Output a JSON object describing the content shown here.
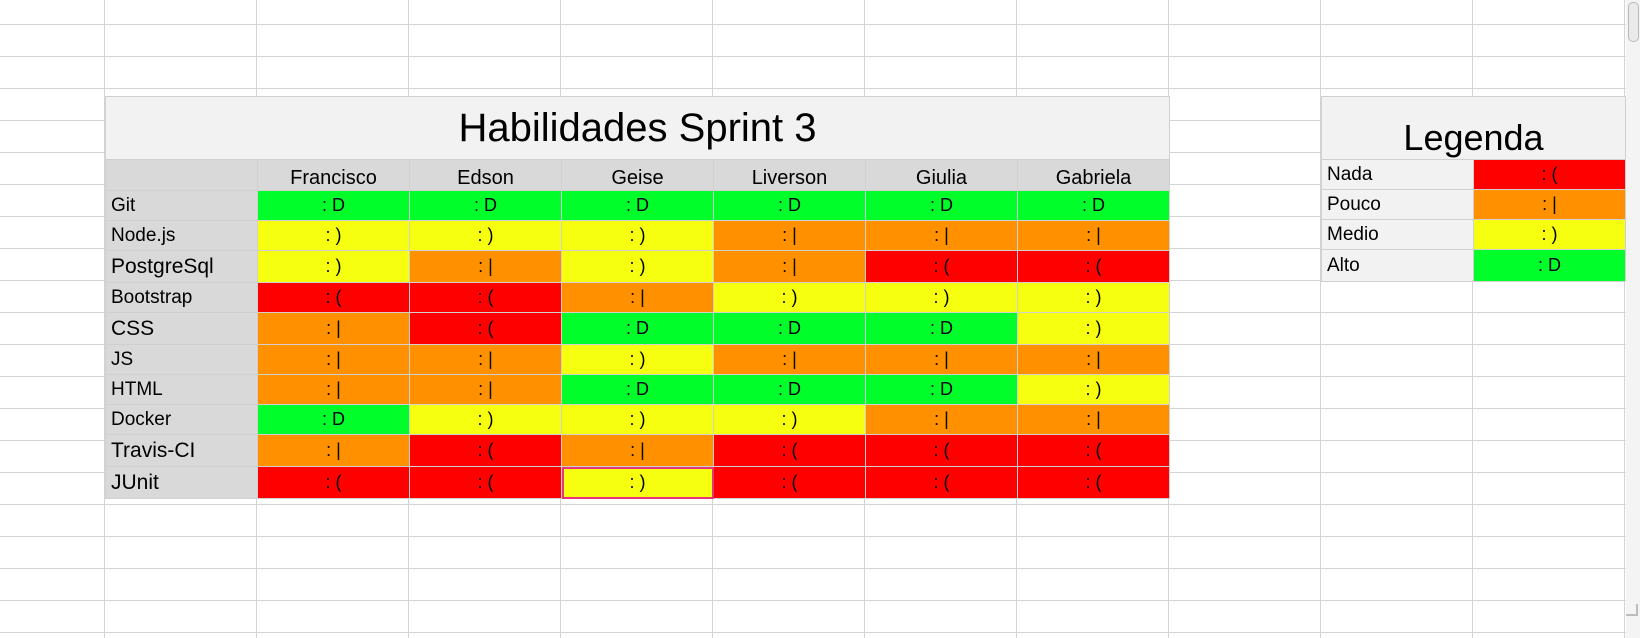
{
  "skills_table": {
    "title": "Habilidades Sprint 3",
    "people": [
      "Francisco",
      "Edson",
      "Geise",
      "Liverson",
      "Giulia",
      "Gabriela"
    ],
    "rows": [
      {
        "skill": "Git",
        "levels": [
          "alto",
          "alto",
          "alto",
          "alto",
          "alto",
          "alto"
        ]
      },
      {
        "skill": "Node.js",
        "levels": [
          "medio",
          "medio",
          "medio",
          "pouco",
          "pouco",
          "pouco"
        ]
      },
      {
        "skill": "PostgreSql",
        "levels": [
          "medio",
          "pouco",
          "medio",
          "pouco",
          "nada",
          "nada"
        ]
      },
      {
        "skill": "Bootstrap",
        "levels": [
          "nada",
          "nada",
          "pouco",
          "medio",
          "medio",
          "medio"
        ]
      },
      {
        "skill": "CSS",
        "levels": [
          "pouco",
          "nada",
          "alto",
          "alto",
          "alto",
          "medio"
        ]
      },
      {
        "skill": "JS",
        "levels": [
          "pouco",
          "pouco",
          "medio",
          "pouco",
          "pouco",
          "pouco"
        ]
      },
      {
        "skill": "HTML",
        "levels": [
          "pouco",
          "pouco",
          "alto",
          "alto",
          "alto",
          "medio"
        ]
      },
      {
        "skill": "Docker",
        "levels": [
          "alto",
          "medio",
          "medio",
          "medio",
          "pouco",
          "pouco"
        ]
      },
      {
        "skill": "Travis-CI",
        "levels": [
          "pouco",
          "nada",
          "pouco",
          "nada",
          "nada",
          "nada"
        ]
      },
      {
        "skill": "JUnit",
        "levels": [
          "nada",
          "nada",
          "medio",
          "nada",
          "nada",
          "nada"
        ]
      }
    ],
    "selected_cell": {
      "row": 9,
      "col": 2
    }
  },
  "legend": {
    "title": "Legenda",
    "items": [
      {
        "key": "nada",
        "label": "Nada",
        "face": ": (",
        "color": "#ff0000"
      },
      {
        "key": "pouco",
        "label": "Pouco",
        "face": ": |",
        "color": "#ff9100"
      },
      {
        "key": "medio",
        "label": "Medio",
        "face": ": )",
        "color": "#f5ff0f"
      },
      {
        "key": "alto",
        "label": "Alto",
        "face": ": D",
        "color": "#00ff2a"
      }
    ]
  }
}
